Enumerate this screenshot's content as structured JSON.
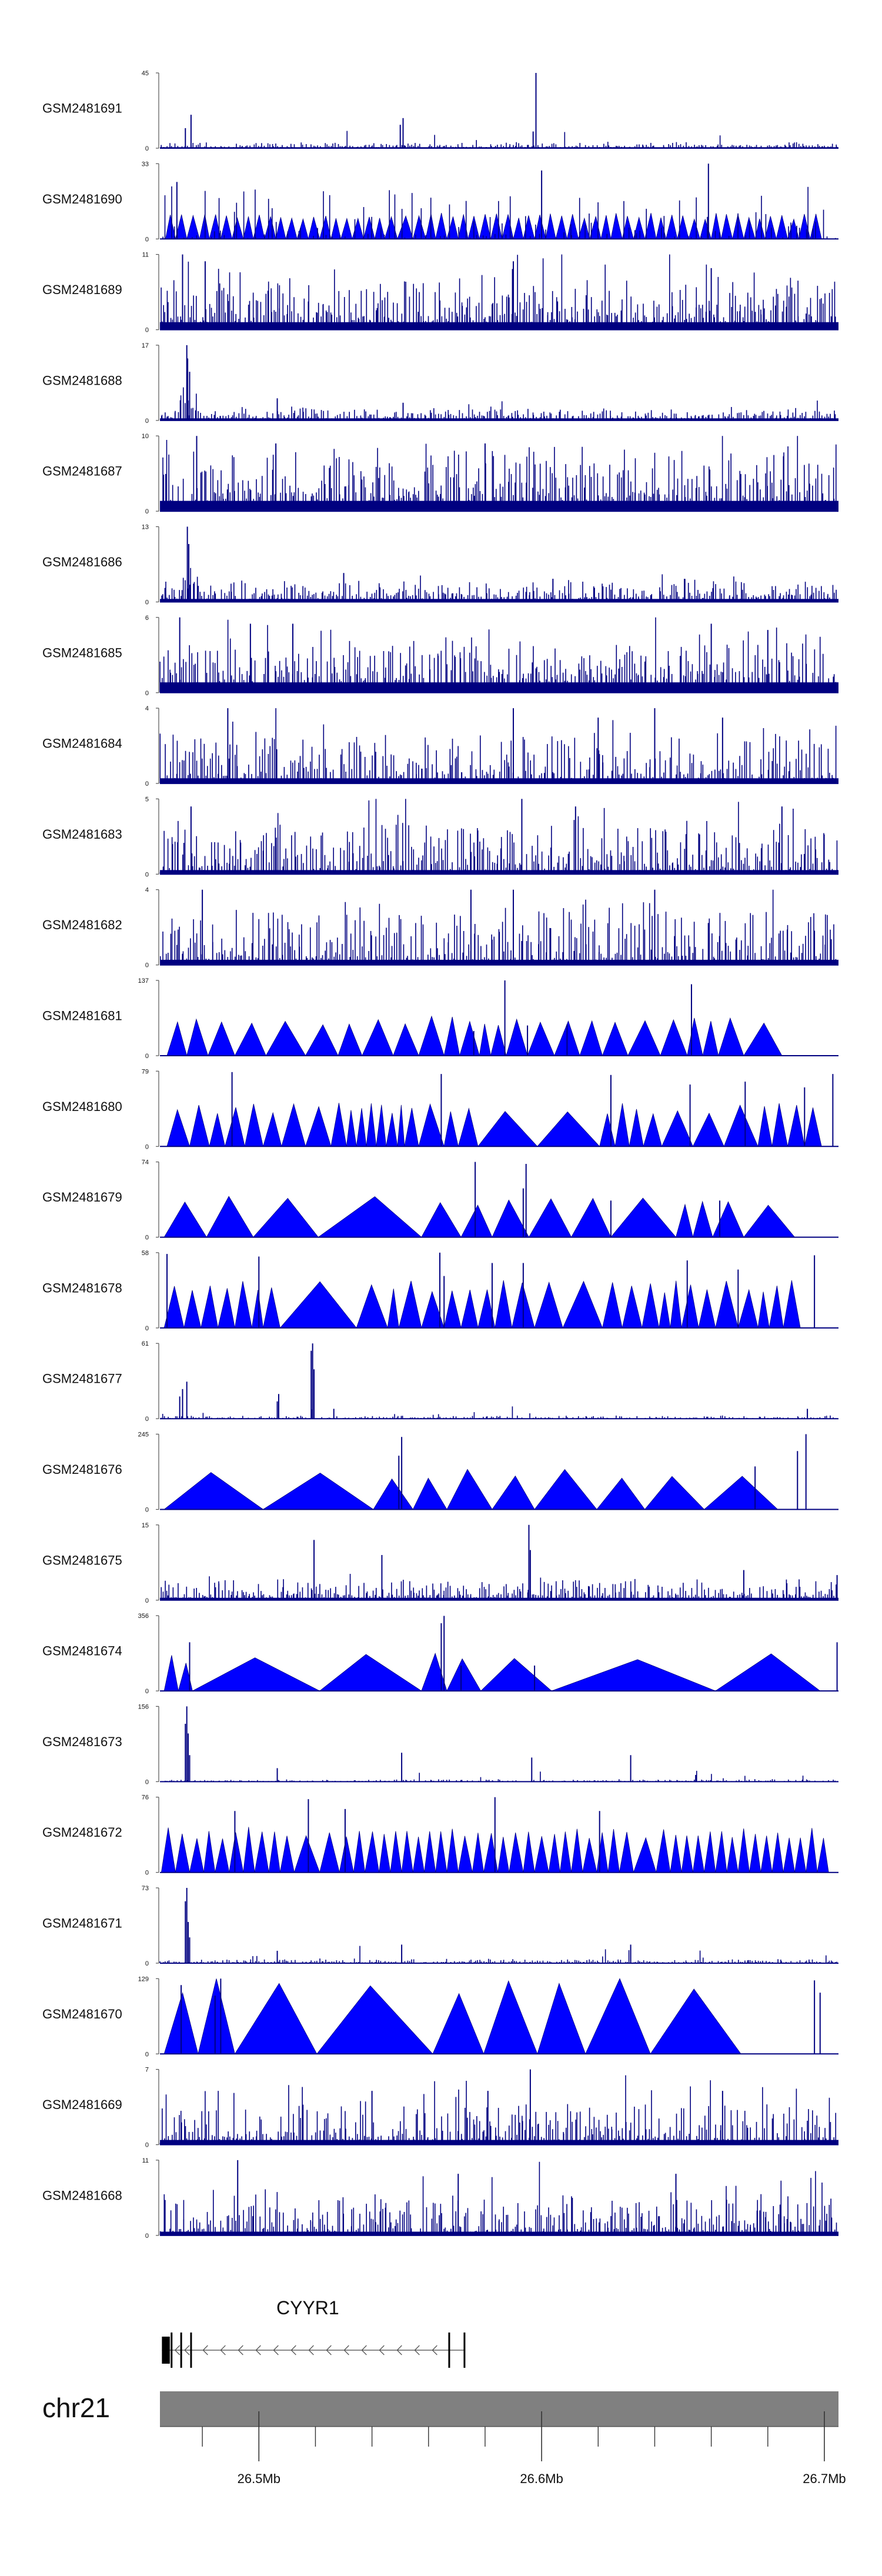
{
  "figure": {
    "chromosome": "chr21",
    "gene": {
      "name": "CYYR1",
      "strand": "-",
      "start_mb": 26.4657,
      "end_mb": 26.5728,
      "exons_mb": [
        [
          26.4657,
          26.4685
        ],
        [
          26.4688,
          26.4691
        ],
        [
          26.4722,
          26.4725
        ],
        [
          26.4757,
          26.4761
        ],
        [
          26.567,
          26.5674
        ],
        [
          26.5724,
          26.5728
        ]
      ]
    },
    "axis_labels": [
      "26.5Mb",
      "26.6Mb",
      "26.7Mb"
    ],
    "colors": {
      "signal": "#0000ff",
      "signal_edge": "#000080",
      "ideogram": "#808080",
      "axis": "#555555"
    }
  },
  "chart_data": {
    "type": "area",
    "title": "",
    "xlabel": "",
    "ylabel": "",
    "xlim": [
      26.465,
      26.705
    ],
    "axis_ticks_mb": [
      26.5,
      26.6,
      26.7
    ],
    "axis_minor_ticks_mb": [
      26.48,
      26.52,
      26.54,
      26.56,
      26.58,
      26.62,
      26.64,
      26.66,
      26.68
    ],
    "ideogram_bands_mb": [
      26.48,
      26.52,
      26.54,
      26.56,
      26.58,
      26.62,
      26.64,
      26.66,
      26.68
    ],
    "series": [
      {
        "name": "GSM2481691",
        "ymax": 45,
        "style": "spiky",
        "base": 1.5,
        "noise": 2.5,
        "bars": 330,
        "peaks": [
          [
            26.474,
            12
          ],
          [
            26.476,
            20
          ],
          [
            26.55,
            14
          ],
          [
            26.551,
            18
          ],
          [
            26.598,
            45
          ],
          [
            26.597,
            10
          ]
        ]
      },
      {
        "name": "GSM2481690",
        "ymax": 33,
        "style": "mixed",
        "tri_x": [
          26.467,
          26.4705,
          26.4745,
          26.479,
          26.4825,
          26.4865,
          26.4905,
          26.4945,
          26.498,
          26.502,
          26.506,
          26.5095,
          26.5135,
          26.5175,
          26.5215,
          26.5255,
          26.529,
          26.533,
          26.537,
          26.541,
          26.5445,
          26.549,
          26.5545,
          26.559,
          26.5625,
          26.5665,
          26.5705,
          26.574,
          26.578,
          26.582,
          26.586,
          26.59,
          26.5935,
          26.5975,
          26.6015,
          26.605,
          26.609,
          26.613,
          26.617,
          26.621,
          26.6245,
          26.6285,
          26.6325,
          26.6365,
          26.6405,
          26.644,
          26.648,
          26.652,
          26.656,
          26.66,
          26.6635,
          26.6675,
          26.6715,
          26.6755,
          26.679,
          26.683,
          26.687,
          26.691,
          26.695,
          26.699
        ],
        "tri_h": 10,
        "spikes": 170,
        "peaks": [
          [
            26.659,
            33
          ],
          [
            26.6,
            30
          ],
          [
            26.471,
            25
          ]
        ]
      },
      {
        "name": "GSM2481689",
        "ymax": 11,
        "style": "dense",
        "base": 2,
        "noise": 6,
        "bars": 420,
        "peaks": [
          [
            26.473,
            11
          ],
          [
            26.481,
            10
          ],
          [
            26.59,
            10
          ],
          [
            26.66,
            9
          ]
        ]
      },
      {
        "name": "GSM2481688",
        "ymax": 17,
        "style": "spiky",
        "base": 1.2,
        "noise": 2.2,
        "bars": 360,
        "bump": [
          26.472,
          26.479,
          6
        ],
        "peaks": [
          [
            26.4745,
            17
          ],
          [
            26.4748,
            14
          ],
          [
            26.4755,
            11
          ],
          [
            26.5065,
            5
          ],
          [
            26.551,
            4
          ]
        ]
      },
      {
        "name": "GSM2481687",
        "ymax": 10,
        "style": "dense",
        "base": 2.5,
        "noise": 6.5,
        "bars": 420,
        "peaks": [
          [
            26.478,
            10
          ],
          [
            26.506,
            9
          ],
          [
            26.58,
            9
          ]
        ]
      },
      {
        "name": "GSM2481686",
        "ymax": 13,
        "style": "spiky",
        "base": 1.3,
        "noise": 2.8,
        "bars": 380,
        "bump": [
          26.473,
          26.479,
          5
        ],
        "peaks": [
          [
            26.4747,
            13
          ],
          [
            26.4752,
            10
          ],
          [
            26.53,
            5
          ],
          [
            26.604,
            4
          ]
        ]
      },
      {
        "name": "GSM2481685",
        "ymax": 6,
        "style": "dense",
        "base": 1.5,
        "noise": 3,
        "bars": 400,
        "peaks": [
          [
            26.472,
            6
          ],
          [
            26.497,
            5.5
          ],
          [
            26.512,
            5.5
          ],
          [
            26.66,
            5.5
          ],
          [
            26.68,
            5
          ]
        ]
      },
      {
        "name": "GSM2481684",
        "ymax": 4,
        "style": "dense",
        "base": 0.5,
        "noise": 2.4,
        "bars": 360,
        "peaks": [
          [
            26.489,
            4
          ],
          [
            26.59,
            4
          ],
          [
            26.62,
            3.5
          ],
          [
            26.64,
            4
          ],
          [
            26.664,
            3.5
          ]
        ]
      },
      {
        "name": "GSM2481683",
        "ymax": 5,
        "style": "dense",
        "base": 0.5,
        "noise": 3,
        "bars": 380,
        "peaks": [
          [
            26.476,
            4.5
          ],
          [
            26.593,
            5
          ],
          [
            26.612,
            4.5
          ],
          [
            26.685,
            4.5
          ]
        ]
      },
      {
        "name": "GSM2481682",
        "ymax": 4,
        "style": "dense",
        "base": 0.5,
        "noise": 2.6,
        "bars": 360,
        "peaks": [
          [
            26.48,
            4
          ],
          [
            26.575,
            4
          ],
          [
            26.59,
            4
          ],
          [
            26.64,
            4
          ]
        ]
      },
      {
        "name": "GSM2481681",
        "ymax": 137,
        "style": "triangles",
        "tri_x": [
          26.4675,
          26.4745,
          26.482,
          26.4915,
          26.5025,
          26.5165,
          26.528,
          26.5365,
          26.5475,
          26.5565,
          26.5655,
          26.571,
          26.578,
          26.582,
          26.5875,
          26.595,
          26.6045,
          26.6135,
          26.6215,
          26.6305,
          26.642,
          26.6515,
          26.657,
          26.6625,
          26.6715,
          26.685
        ],
        "tri_h": 65,
        "peaks": [
          [
            26.587,
            137
          ],
          [
            26.576,
            45
          ],
          [
            26.653,
            130
          ],
          [
            26.595,
            55
          ],
          [
            26.609,
            57
          ]
        ]
      },
      {
        "name": "GSM2481680",
        "ymax": 79,
        "style": "triangles",
        "tri_x": [
          26.4675,
          26.4755,
          26.4825,
          26.488,
          26.495,
          26.5015,
          26.508,
          26.5165,
          26.5255,
          26.531,
          26.5345,
          26.538,
          26.5415,
          26.545,
          26.549,
          26.5515,
          26.5565,
          26.5655,
          26.5705,
          26.5775,
          26.5985,
          26.6205,
          26.626,
          26.631,
          26.636,
          26.6425,
          26.6535,
          26.6645,
          26.6765,
          26.6815,
          26.687,
          26.693,
          26.699
        ],
        "tri_h": 40,
        "peaks": [
          [
            26.4905,
            78
          ],
          [
            26.5645,
            76
          ],
          [
            26.6245,
            75
          ],
          [
            26.6525,
            65
          ],
          [
            26.703,
            76
          ],
          [
            26.672,
            68
          ],
          [
            26.693,
            62
          ]
        ]
      },
      {
        "name": "GSM2481679",
        "ymax": 74,
        "style": "triangles",
        "tri_x": [
          26.4665,
          26.4815,
          26.498,
          26.521,
          26.5575,
          26.5715,
          26.5825,
          26.5955,
          26.6105,
          26.6245,
          26.6475,
          26.6535,
          26.6605,
          26.6715,
          26.6895
        ],
        "tri_h": 35,
        "peaks": [
          [
            26.5765,
            74
          ],
          [
            26.5945,
            72
          ],
          [
            26.5935,
            48
          ],
          [
            26.6245,
            36
          ],
          [
            26.663,
            36
          ]
        ]
      },
      {
        "name": "GSM2481678",
        "ymax": 58,
        "style": "triangles",
        "tri_x": [
          26.4665,
          26.4735,
          26.4795,
          26.4855,
          26.4915,
          26.4975,
          26.5015,
          26.5075,
          26.5345,
          26.5455,
          26.5495,
          26.5575,
          26.5655,
          26.5715,
          26.5775,
          26.5835,
          26.5895,
          26.5975,
          26.6075,
          26.6215,
          26.6285,
          26.6355,
          26.6415,
          26.6455,
          26.6495,
          26.6555,
          26.6615,
          26.6695,
          26.6765,
          26.6805,
          26.6855,
          26.6915
        ],
        "tri_h": 32,
        "peaks": [
          [
            26.4675,
            57
          ],
          [
            26.5,
            55
          ],
          [
            26.564,
            58
          ],
          [
            26.5655,
            40
          ],
          [
            26.5825,
            50
          ],
          [
            26.5935,
            50
          ],
          [
            26.6515,
            52
          ],
          [
            26.6695,
            45
          ],
          [
            26.6965,
            56
          ]
        ]
      },
      {
        "name": "GSM2481677",
        "ymax": 61,
        "style": "spiky",
        "base": 0.6,
        "noise": 2.2,
        "bars": 320,
        "peaks": [
          [
            26.472,
            18
          ],
          [
            26.473,
            24
          ],
          [
            26.4745,
            30
          ],
          [
            26.5065,
            14
          ],
          [
            26.507,
            20
          ],
          [
            26.5185,
            55
          ],
          [
            26.519,
            61
          ],
          [
            26.5195,
            40
          ],
          [
            26.5265,
            8
          ],
          [
            26.694,
            8
          ]
        ]
      },
      {
        "name": "GSM2481676",
        "ymax": 245,
        "style": "triangles",
        "tri_x": [
          26.4665,
          26.5015,
          26.5405,
          26.5545,
          26.5665,
          26.5825,
          26.5975,
          26.6195,
          26.6365,
          26.6575,
          26.6835
        ],
        "tri_h": 115,
        "peaks": [
          [
            26.5495,
            175
          ],
          [
            26.5505,
            236
          ],
          [
            26.6935,
            245
          ],
          [
            26.6755,
            140
          ],
          [
            26.6905,
            190
          ]
        ]
      },
      {
        "name": "GSM2481675",
        "ymax": 15,
        "style": "spiky",
        "base": 1.2,
        "noise": 3.5,
        "bars": 380,
        "peaks": [
          [
            26.5195,
            12
          ],
          [
            26.5435,
            9
          ],
          [
            26.5955,
            15
          ],
          [
            26.596,
            10
          ],
          [
            26.6715,
            6
          ],
          [
            26.7045,
            5
          ]
        ]
      },
      {
        "name": "GSM2481674",
        "ymax": 356,
        "style": "triangles",
        "tri_x": [
          26.4665,
          26.4715,
          26.4765,
          26.5215,
          26.5575,
          26.5665,
          26.5785,
          26.6035,
          26.6615,
          26.6985
        ],
        "tri_h": 155,
        "peaks": [
          [
            26.4755,
            230
          ],
          [
            26.5645,
            320
          ],
          [
            26.5655,
            355
          ],
          [
            26.5715,
            120
          ],
          [
            26.5975,
            120
          ],
          [
            26.7045,
            230
          ]
        ]
      },
      {
        "name": "GSM2481673",
        "ymax": 156,
        "style": "spiky",
        "base": 1.5,
        "noise": 4,
        "bars": 320,
        "peaks": [
          [
            26.474,
            120
          ],
          [
            26.4745,
            156
          ],
          [
            26.475,
            100
          ],
          [
            26.4755,
            55
          ],
          [
            26.5065,
            28
          ],
          [
            26.5505,
            60
          ],
          [
            26.5965,
            50
          ],
          [
            26.6315,
            55
          ],
          [
            26.6545,
            14
          ]
        ]
      },
      {
        "name": "GSM2481672",
        "ymax": 76,
        "style": "triangles",
        "tri_x": [
          26.4655,
          26.4705,
          26.4755,
          26.4805,
          26.4845,
          26.4895,
          26.4945,
          26.4985,
          26.5035,
          26.5075,
          26.5125,
          26.5215,
          26.5285,
          26.5335,
          26.5375,
          26.5425,
          26.5465,
          26.5505,
          26.5545,
          26.5585,
          26.5625,
          26.5665,
          26.5705,
          26.5755,
          26.5795,
          26.5845,
          26.5885,
          26.5935,
          26.5975,
          26.6025,
          26.6065,
          26.6105,
          26.6145,
          26.6195,
          26.6235,
          26.6275,
          26.6325,
          26.6405,
          26.6455,
          26.6495,
          26.6535,
          26.6575,
          26.6615,
          26.6655,
          26.6695,
          26.6735,
          26.6775,
          26.6815,
          26.6855,
          26.6895,
          26.6935,
          26.6975,
          26.7015
        ],
        "tri_h": 40,
        "peaks": [
          [
            26.4915,
            62
          ],
          [
            26.5175,
            74
          ],
          [
            26.5305,
            64
          ],
          [
            26.5835,
            76
          ],
          [
            26.6205,
            62
          ]
        ]
      },
      {
        "name": "GSM2481671",
        "ymax": 73,
        "style": "spiky",
        "base": 1.3,
        "noise": 3.2,
        "bars": 330,
        "peaks": [
          [
            26.474,
            60
          ],
          [
            26.4745,
            73
          ],
          [
            26.475,
            40
          ],
          [
            26.4755,
            25
          ],
          [
            26.5065,
            12
          ],
          [
            26.5505,
            18
          ],
          [
            26.6315,
            18
          ]
        ]
      },
      {
        "name": "GSM2481670",
        "ymax": 129,
        "style": "triangles",
        "tri_x": [
          26.4665,
          26.4785,
          26.4915,
          26.5205,
          26.5615,
          26.5795,
          26.5985,
          26.6155,
          26.6385,
          26.6705
        ],
        "tri_h": 120,
        "peaks": [
          [
            26.4725,
            118
          ],
          [
            26.4865,
            129
          ],
          [
            26.4845,
            100
          ],
          [
            26.6965,
            126
          ],
          [
            26.6985,
            105
          ]
        ]
      },
      {
        "name": "GSM2481669",
        "ymax": 7,
        "style": "dense",
        "base": 0.8,
        "noise": 3.4,
        "bars": 380,
        "peaks": [
          [
            26.596,
            7
          ],
          [
            26.581,
            5
          ],
          [
            26.54,
            5
          ],
          [
            26.664,
            5
          ]
        ]
      },
      {
        "name": "GSM2481668",
        "ymax": 11,
        "style": "dense",
        "base": 1,
        "noise": 5,
        "bars": 400,
        "peaks": [
          [
            26.4925,
            11
          ],
          [
            26.5705,
            9
          ],
          [
            26.6475,
            9
          ]
        ]
      }
    ]
  }
}
